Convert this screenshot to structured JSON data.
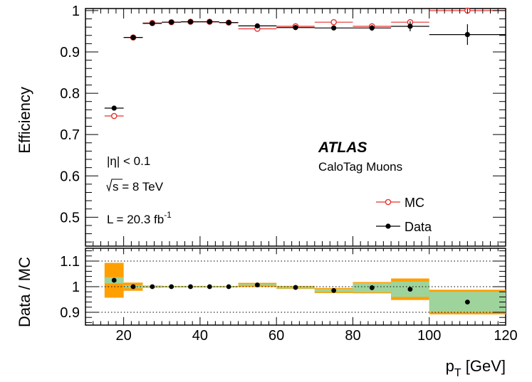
{
  "chart_data": {
    "type": "scatter",
    "title": "",
    "xlabel": "p",
    "xlabel_sub": "T",
    "xlabel_unit": " [GeV]",
    "upper": {
      "ylabel": "Efficiency",
      "ylim": [
        0.43,
        1.005
      ],
      "yticks": [
        0.5,
        0.6,
        0.7,
        0.8,
        0.9,
        1
      ],
      "ytick_labels": [
        "0.5",
        "0.6",
        "0.7",
        "0.8",
        "0.9",
        "1"
      ],
      "series": [
        {
          "name": "MC",
          "color": "#e8312f",
          "marker": "open-circle",
          "points": [
            {
              "x": 17.5,
              "xlo": 15,
              "xhi": 20,
              "y": 0.745,
              "err": 0.006
            },
            {
              "x": 22.5,
              "xlo": 20,
              "xhi": 25,
              "y": 0.935,
              "err": 0.003
            },
            {
              "x": 27.5,
              "xlo": 25,
              "xhi": 30,
              "y": 0.97,
              "err": 0.003
            },
            {
              "x": 32.5,
              "xlo": 30,
              "xhi": 35,
              "y": 0.972,
              "err": 0.002
            },
            {
              "x": 37.5,
              "xlo": 35,
              "xhi": 40,
              "y": 0.973,
              "err": 0.002
            },
            {
              "x": 42.5,
              "xlo": 40,
              "xhi": 45,
              "y": 0.973,
              "err": 0.002
            },
            {
              "x": 47.5,
              "xlo": 45,
              "xhi": 50,
              "y": 0.971,
              "err": 0.002
            },
            {
              "x": 55,
              "xlo": 50,
              "xhi": 60,
              "y": 0.956,
              "err": 0.002
            },
            {
              "x": 65,
              "xlo": 60,
              "xhi": 70,
              "y": 0.962,
              "err": 0.002
            },
            {
              "x": 75,
              "xlo": 70,
              "xhi": 80,
              "y": 0.972,
              "err": 0.003
            },
            {
              "x": 85,
              "xlo": 80,
              "xhi": 90,
              "y": 0.962,
              "err": 0.004
            },
            {
              "x": 95,
              "xlo": 90,
              "xhi": 100,
              "y": 0.972,
              "err": 0.005
            },
            {
              "x": 110,
              "xlo": 100,
              "xhi": 120,
              "y": 1.0,
              "err": 0.002
            }
          ]
        },
        {
          "name": "Data",
          "color": "#000000",
          "marker": "filled-circle",
          "points": [
            {
              "x": 17.5,
              "xlo": 15,
              "xhi": 20,
              "y": 0.764,
              "err": 0.004
            },
            {
              "x": 22.5,
              "xlo": 20,
              "xhi": 25,
              "y": 0.935,
              "err": 0.002
            },
            {
              "x": 27.5,
              "xlo": 25,
              "xhi": 30,
              "y": 0.969,
              "err": 0.002
            },
            {
              "x": 32.5,
              "xlo": 30,
              "xhi": 35,
              "y": 0.972,
              "err": 0.002
            },
            {
              "x": 37.5,
              "xlo": 35,
              "xhi": 40,
              "y": 0.973,
              "err": 0.002
            },
            {
              "x": 42.5,
              "xlo": 40,
              "xhi": 45,
              "y": 0.973,
              "err": 0.002
            },
            {
              "x": 47.5,
              "xlo": 45,
              "xhi": 50,
              "y": 0.971,
              "err": 0.002
            },
            {
              "x": 55,
              "xlo": 50,
              "xhi": 60,
              "y": 0.963,
              "err": 0.002
            },
            {
              "x": 65,
              "xlo": 60,
              "xhi": 70,
              "y": 0.959,
              "err": 0.003
            },
            {
              "x": 75,
              "xlo": 70,
              "xhi": 80,
              "y": 0.958,
              "err": 0.003
            },
            {
              "x": 85,
              "xlo": 80,
              "xhi": 90,
              "y": 0.958,
              "err": 0.007
            },
            {
              "x": 95,
              "xlo": 90,
              "xhi": 100,
              "y": 0.962,
              "err": 0.012
            },
            {
              "x": 110,
              "xlo": 100,
              "xhi": 120,
              "y": 0.942,
              "err": 0.025
            }
          ]
        }
      ]
    },
    "lower": {
      "ylabel": "Data / MC",
      "ylim": [
        0.85,
        1.15
      ],
      "yticks": [
        0.9,
        1,
        1.1
      ],
      "ytick_labels": [
        "0.9",
        "1",
        "1.1"
      ],
      "dotted_lines": [
        0.9,
        1.0,
        1.1
      ],
      "stat_band_color": "#9ed49c",
      "syst_band_color": "#ff9f00",
      "points": [
        {
          "x": 17.5,
          "xlo": 15,
          "xhi": 20,
          "y": 1.025,
          "stat": 0.012,
          "total": 0.068
        },
        {
          "x": 22.5,
          "xlo": 20,
          "xhi": 25,
          "y": 1.0,
          "stat": 0.006,
          "total": 0.016
        },
        {
          "x": 27.5,
          "xlo": 25,
          "xhi": 30,
          "y": 1.0,
          "stat": 0.002,
          "total": 0.004
        },
        {
          "x": 32.5,
          "xlo": 30,
          "xhi": 35,
          "y": 1.0,
          "stat": 0.002,
          "total": 0.003
        },
        {
          "x": 37.5,
          "xlo": 35,
          "xhi": 40,
          "y": 1.0,
          "stat": 0.002,
          "total": 0.003
        },
        {
          "x": 42.5,
          "xlo": 40,
          "xhi": 45,
          "y": 1.0,
          "stat": 0.002,
          "total": 0.003
        },
        {
          "x": 47.5,
          "xlo": 45,
          "xhi": 50,
          "y": 1.0,
          "stat": 0.002,
          "total": 0.003
        },
        {
          "x": 55,
          "xlo": 50,
          "xhi": 60,
          "y": 1.007,
          "stat": 0.003,
          "total": 0.008
        },
        {
          "x": 65,
          "xlo": 60,
          "xhi": 70,
          "y": 0.997,
          "stat": 0.004,
          "total": 0.006
        },
        {
          "x": 75,
          "xlo": 70,
          "xhi": 80,
          "y": 0.985,
          "stat": 0.006,
          "total": 0.01
        },
        {
          "x": 85,
          "xlo": 80,
          "xhi": 90,
          "y": 0.996,
          "stat": 0.018,
          "total": 0.022
        },
        {
          "x": 95,
          "xlo": 90,
          "xhi": 100,
          "y": 0.99,
          "stat": 0.03,
          "total": 0.042
        },
        {
          "x": 110,
          "xlo": 100,
          "xhi": 120,
          "y": 0.94,
          "stat": 0.04,
          "total": 0.048
        }
      ]
    },
    "xlim": [
      10,
      120
    ],
    "xticks": [
      20,
      40,
      60,
      80,
      100,
      120
    ],
    "xtick_labels": [
      "20",
      "40",
      "60",
      "80",
      "100",
      "120"
    ],
    "legend": {
      "placement": "right",
      "entries": [
        {
          "label": "MC",
          "series": "MC"
        },
        {
          "label": "Data",
          "series": "Data"
        }
      ]
    },
    "annotations": {
      "atlas": "ATLAS",
      "subtitle": "CaloTag Muons",
      "eta_prefix": "|η| < 0.1",
      "sqrt_s": "s = 8 TeV",
      "lumi_main": "L = 20.3 fb",
      "lumi_sup": "-1"
    }
  }
}
